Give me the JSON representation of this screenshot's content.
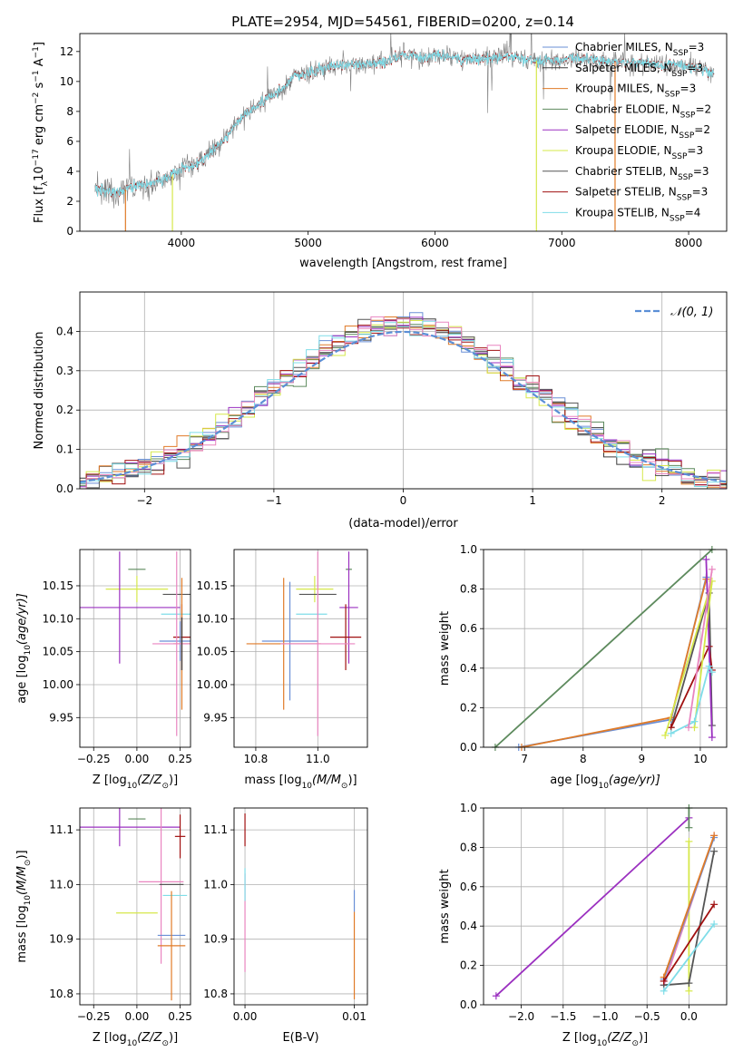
{
  "figure": {
    "title": "PLATE=2954, MJD=54561, FIBERID=0200, z=0.14"
  },
  "legend_items": [
    {
      "label": "Chabrier MILES, N",
      "sub": "SSP",
      "suffix": "=3",
      "color": "#6a8fd6"
    },
    {
      "label": "Salpeter MILES, N",
      "sub": "SSP",
      "suffix": "=3",
      "color": "#3a3a3a"
    },
    {
      "label": "Kroupa MILES, N",
      "sub": "SSP",
      "suffix": "=3",
      "color": "#e07b28"
    },
    {
      "label": "Chabrier ELODIE, N",
      "sub": "SSP",
      "suffix": "=2",
      "color": "#5d8a5d"
    },
    {
      "label": "Salpeter ELODIE, N",
      "sub": "SSP",
      "suffix": "=2",
      "color": "#9b30c0"
    },
    {
      "label": "Kroupa ELODIE, N",
      "sub": "SSP",
      "suffix": "=3",
      "color": "#d6e84a"
    },
    {
      "label": "Chabrier STELIB, N",
      "sub": "SSP",
      "suffix": "=3",
      "color": "#555555"
    },
    {
      "label": "Salpeter STELIB, N",
      "sub": "SSP",
      "suffix": "=3",
      "color": "#a01010"
    },
    {
      "label": "Kroupa STELIB, N",
      "sub": "SSP",
      "suffix": "=4",
      "color": "#7fdde8"
    }
  ],
  "chart_data": [
    {
      "id": "spectrum",
      "type": "line",
      "xlabel": "wavelength [Angstrom, rest frame]",
      "ylabel_parts": [
        "Flux [f",
        "λ",
        "10",
        "−17",
        " erg cm",
        "−2",
        " s",
        "−1",
        " A",
        "−1",
        "]"
      ],
      "xlim": [
        3200,
        8300
      ],
      "ylim": [
        0,
        13.2
      ],
      "xticks": [
        4000,
        5000,
        6000,
        7000,
        8000
      ],
      "yticks": [
        0,
        2,
        4,
        6,
        8,
        10,
        12
      ],
      "grid": false,
      "legend": "upper-right",
      "data_envelope": [
        [
          3320,
          2.8
        ],
        [
          3400,
          2.7
        ],
        [
          3500,
          2.5
        ],
        [
          3600,
          3.0
        ],
        [
          3700,
          3.0
        ],
        [
          3800,
          3.3
        ],
        [
          3900,
          3.6
        ],
        [
          4000,
          4.2
        ],
        [
          4100,
          4.4
        ],
        [
          4200,
          5.0
        ],
        [
          4300,
          5.8
        ],
        [
          4400,
          6.8
        ],
        [
          4500,
          7.8
        ],
        [
          4600,
          8.4
        ],
        [
          4700,
          9.0
        ],
        [
          4800,
          9.5
        ],
        [
          4900,
          10.4
        ],
        [
          5000,
          10.6
        ],
        [
          5100,
          10.8
        ],
        [
          5200,
          11.0
        ],
        [
          5300,
          11.1
        ],
        [
          5400,
          11.1
        ],
        [
          5500,
          11.2
        ],
        [
          5600,
          11.4
        ],
        [
          5700,
          11.7
        ],
        [
          5800,
          11.7
        ],
        [
          5900,
          11.6
        ],
        [
          6000,
          11.8
        ],
        [
          6100,
          11.7
        ],
        [
          6200,
          11.5
        ],
        [
          6300,
          11.5
        ],
        [
          6400,
          11.5
        ],
        [
          6500,
          11.6
        ],
        [
          6600,
          11.7
        ],
        [
          6700,
          11.5
        ],
        [
          6800,
          11.4
        ],
        [
          6900,
          11.4
        ],
        [
          7000,
          11.4
        ],
        [
          7100,
          11.6
        ],
        [
          7200,
          11.5
        ],
        [
          7300,
          11.4
        ],
        [
          7400,
          11.3
        ],
        [
          7500,
          11.3
        ],
        [
          7600,
          11.3
        ],
        [
          7700,
          11.2
        ],
        [
          7800,
          11.0
        ],
        [
          7900,
          11.2
        ],
        [
          8000,
          11.0
        ],
        [
          8100,
          10.9
        ],
        [
          8200,
          10.5
        ]
      ],
      "data_color": "#808080",
      "model_color": "#7fdde8"
    },
    {
      "id": "residual-histogram",
      "type": "histogram",
      "xlabel": "(data-model)/error",
      "ylabel": "Normed distribution",
      "xlim": [
        -2.5,
        2.5
      ],
      "ylim": [
        0,
        0.5
      ],
      "xticks": [
        -2,
        -1,
        0,
        1,
        2
      ],
      "yticks": [
        0.0,
        0.1,
        0.2,
        0.3,
        0.4
      ],
      "grid": true,
      "legend": "upper-right",
      "reference": {
        "label": "𝒩(0, 1)",
        "mean": 0,
        "sigma": 1,
        "color": "#5b8fd6"
      },
      "bin_width": 0.1
    },
    {
      "id": "age-vs-Z",
      "type": "errorbar",
      "xlabel_parts": [
        "Z [log",
        "10",
        "(Z/Z",
        "⊙",
        ")]"
      ],
      "ylabel_parts": [
        "age  [log",
        "10",
        "(age/yr)]"
      ],
      "xlim": [
        -0.33,
        0.31
      ],
      "ylim": [
        9.905,
        10.205
      ],
      "xticks": [
        -0.25,
        0.0,
        0.25
      ],
      "xticklabels": [
        "−0.25",
        "0.00",
        "0.25"
      ],
      "yticks": [
        9.95,
        10.0,
        10.05,
        10.1,
        10.15
      ],
      "yticklabels": [
        "9.95",
        "10.00",
        "10.05",
        "10.10",
        "10.15"
      ],
      "points": [
        {
          "x": 0.0,
          "y": 10.175,
          "xerr": 0.05,
          "yerr": 0.0,
          "color": "#5d8a5d"
        },
        {
          "x": 0.0,
          "y": 10.145,
          "xerr": 0.18,
          "yerr": 0.02,
          "color": "#d6e84a"
        },
        {
          "x": -0.1,
          "y": 10.117,
          "xerr": 0.35,
          "yerr": 0.085,
          "color": "#9b30c0"
        },
        {
          "x": 0.23,
          "y": 10.137,
          "xerr": 0.08,
          "yerr": 0.0,
          "color": "#555555"
        },
        {
          "x": 0.23,
          "y": 10.107,
          "xerr": 0.09,
          "yerr": 0.0,
          "color": "#7fdde8"
        },
        {
          "x": 0.26,
          "y": 10.072,
          "xerr": 0.05,
          "yerr": 0.05,
          "color": "#a01010"
        },
        {
          "x": 0.25,
          "y": 10.066,
          "xerr": 0.12,
          "yerr": 0.03,
          "color": "#6a8fd6"
        },
        {
          "x": 0.26,
          "y": 10.062,
          "xerr": 0.05,
          "yerr": 0.1,
          "color": "#e07b28"
        },
        {
          "x": 0.23,
          "y": 10.062,
          "xerr": 0.14,
          "yerr": 0.14,
          "color": "#e985c0"
        },
        {
          "x": 0.26,
          "y": 10.062,
          "xerr": 0.0,
          "yerr": 0.04,
          "color": "#3a3a3a"
        }
      ]
    },
    {
      "id": "age-vs-mass",
      "type": "errorbar",
      "xlabel_parts": [
        "mass [log",
        "10",
        "(M/M",
        "⊙",
        ")]"
      ],
      "ylabel_parts": [],
      "xlim": [
        10.73,
        11.16
      ],
      "ylim": [
        9.905,
        10.205
      ],
      "xticks": [
        10.8,
        11.0
      ],
      "xticklabels": [
        "10.8",
        "11.0"
      ],
      "yticks": [
        9.95,
        10.0,
        10.05,
        10.1,
        10.15
      ],
      "yticklabels": [
        "9.95",
        "10.00",
        "10.05",
        "10.10",
        "10.15"
      ],
      "points": [
        {
          "x": 11.1,
          "y": 10.175,
          "xerr": 0.01,
          "yerr": 0.0,
          "color": "#5d8a5d"
        },
        {
          "x": 10.99,
          "y": 10.145,
          "xerr": 0.06,
          "yerr": 0.02,
          "color": "#d6e84a"
        },
        {
          "x": 11.1,
          "y": 10.117,
          "xerr": 0.03,
          "yerr": 0.085,
          "color": "#9b30c0"
        },
        {
          "x": 11.0,
          "y": 10.137,
          "xerr": 0.06,
          "yerr": 0.0,
          "color": "#555555"
        },
        {
          "x": 10.98,
          "y": 10.107,
          "xerr": 0.05,
          "yerr": 0.0,
          "color": "#7fdde8"
        },
        {
          "x": 11.09,
          "y": 10.072,
          "xerr": 0.05,
          "yerr": 0.05,
          "color": "#a01010"
        },
        {
          "x": 10.91,
          "y": 10.066,
          "xerr": 0.09,
          "yerr": 0.09,
          "color": "#6a8fd6"
        },
        {
          "x": 10.89,
          "y": 10.062,
          "xerr": 0.12,
          "yerr": 0.1,
          "color": "#e07b28"
        },
        {
          "x": 11.0,
          "y": 10.062,
          "xerr": 0.12,
          "yerr": 0.14,
          "color": "#e985c0"
        }
      ]
    },
    {
      "id": "weight-vs-age",
      "type": "line",
      "xlabel_parts": [
        "age  [log",
        "10",
        "(age/yr)]"
      ],
      "ylabel": "mass weight",
      "xlim": [
        6.3,
        10.45
      ],
      "ylim": [
        0,
        1.0
      ],
      "xticks": [
        7,
        8,
        9,
        10
      ],
      "yticks": [
        0.0,
        0.2,
        0.4,
        0.6,
        0.8,
        1.0
      ],
      "grid": true,
      "series": [
        {
          "color": "#5d8a5d",
          "points": [
            [
              6.5,
              0.0
            ],
            [
              10.2,
              1.0
            ]
          ]
        },
        {
          "color": "#6a8fd6",
          "points": [
            [
              6.9,
              0.0
            ],
            [
              9.5,
              0.14
            ],
            [
              10.1,
              0.86
            ]
          ]
        },
        {
          "color": "#e07b28",
          "points": [
            [
              6.95,
              0.0
            ],
            [
              9.5,
              0.15
            ],
            [
              10.1,
              0.85
            ]
          ]
        },
        {
          "color": "#555555",
          "points": [
            [
              9.5,
              0.1
            ],
            [
              10.15,
              0.78
            ],
            [
              10.2,
              0.11
            ]
          ]
        },
        {
          "color": "#a01010",
          "points": [
            [
              9.5,
              0.1
            ],
            [
              10.15,
              0.51
            ],
            [
              10.2,
              0.39
            ]
          ]
        },
        {
          "color": "#9b30c0",
          "points": [
            [
              10.1,
              0.95
            ],
            [
              10.2,
              0.05
            ]
          ]
        },
        {
          "color": "#d6e84a",
          "points": [
            [
              9.4,
              0.06
            ],
            [
              10.2,
              0.84
            ],
            [
              9.9,
              0.1
            ]
          ]
        },
        {
          "color": "#7fdde8",
          "points": [
            [
              9.5,
              0.07
            ],
            [
              9.9,
              0.13
            ],
            [
              10.15,
              0.41
            ],
            [
              10.2,
              0.38
            ]
          ]
        },
        {
          "color": "#e985c0",
          "points": [
            [
              9.8,
              0.1
            ],
            [
              10.2,
              0.9
            ]
          ]
        }
      ]
    },
    {
      "id": "mass-vs-Z",
      "type": "errorbar",
      "xlabel_parts": [
        "Z [log",
        "10",
        "(Z/Z",
        "⊙",
        ")]"
      ],
      "ylabel_parts": [
        "mass [log",
        "10",
        "(M/M",
        "⊙",
        ")]"
      ],
      "xlim": [
        -0.33,
        0.31
      ],
      "ylim": [
        10.78,
        11.14
      ],
      "xticks": [
        -0.25,
        0.0,
        0.25
      ],
      "xticklabels": [
        "−0.25",
        "0.00",
        "0.25"
      ],
      "yticks": [
        10.8,
        10.9,
        11.0,
        11.1
      ],
      "yticklabels": [
        "10.8",
        "10.9",
        "11.0",
        "11.1"
      ],
      "points": [
        {
          "x": 0.0,
          "y": 11.12,
          "xerr": 0.05,
          "yerr": 0.0,
          "color": "#5d8a5d"
        },
        {
          "x": -0.1,
          "y": 11.105,
          "xerr": 0.35,
          "yerr": 0.035,
          "color": "#9b30c0"
        },
        {
          "x": 0.25,
          "y": 11.088,
          "xerr": 0.03,
          "yerr": 0.04,
          "color": "#a01010"
        },
        {
          "x": 0.14,
          "y": 11.005,
          "xerr": 0.13,
          "yerr": 0.15,
          "color": "#e985c0"
        },
        {
          "x": 0.2,
          "y": 11.0,
          "xerr": 0.07,
          "yerr": 0.0,
          "color": "#555555"
        },
        {
          "x": 0.22,
          "y": 10.98,
          "xerr": 0.07,
          "yerr": 0.0,
          "color": "#7fdde8"
        },
        {
          "x": 0.0,
          "y": 10.948,
          "xerr": 0.12,
          "yerr": 0.0,
          "color": "#d6e84a"
        },
        {
          "x": 0.2,
          "y": 10.907,
          "xerr": 0.08,
          "yerr": 0.0,
          "color": "#6a8fd6"
        },
        {
          "x": 0.2,
          "y": 10.888,
          "xerr": 0.08,
          "yerr": 0.1,
          "color": "#e07b28"
        }
      ]
    },
    {
      "id": "mass-vs-EBV",
      "type": "errorbar",
      "xlabel": "E(B-V)",
      "ylabel_parts": [],
      "xlim": [
        -0.001,
        0.0112
      ],
      "ylim": [
        10.78,
        11.14
      ],
      "xticks": [
        0.0,
        0.01
      ],
      "xticklabels": [
        "0.00",
        "0.01"
      ],
      "yticks": [
        10.8,
        10.9,
        11.0,
        11.1
      ],
      "yticklabels": [
        "10.8",
        "10.9",
        "11.0",
        "11.1"
      ],
      "points": [
        {
          "x": 0.0,
          "y": 11.1,
          "xerr": 0.0,
          "yerr": 0.03,
          "color": "#a01010"
        },
        {
          "x": 0.0,
          "y": 10.93,
          "xerr": 0.0,
          "yerr": 0.09,
          "color": "#e985c0"
        },
        {
          "x": 0.0,
          "y": 11.0,
          "xerr": 0.0,
          "yerr": 0.03,
          "color": "#7fdde8"
        },
        {
          "x": 0.01,
          "y": 10.97,
          "xerr": 0.0,
          "yerr": 0.02,
          "color": "#6a8fd6"
        },
        {
          "x": 0.01,
          "y": 10.87,
          "xerr": 0.0,
          "yerr": 0.08,
          "color": "#e07b28"
        }
      ]
    },
    {
      "id": "weight-vs-Z",
      "type": "line",
      "xlabel_parts": [
        "Z [log",
        "10",
        "(Z/Z",
        "⊙",
        ")]"
      ],
      "ylabel": "mass weight",
      "xlim": [
        -2.45,
        0.45
      ],
      "ylim": [
        0,
        1.0
      ],
      "xticks": [
        -2.0,
        -1.5,
        -1.0,
        -0.5,
        0.0
      ],
      "xticklabels": [
        "−2.0",
        "−1.5",
        "−1.0",
        "−0.5",
        "0.0"
      ],
      "yticks": [
        0.0,
        0.2,
        0.4,
        0.6,
        0.8,
        1.0
      ],
      "grid": true,
      "series": [
        {
          "color": "#9b30c0",
          "points": [
            [
              -2.3,
              0.045
            ],
            [
              0.0,
              0.95
            ]
          ]
        },
        {
          "color": "#5d8a5d",
          "points": [
            [
              0.0,
              1.0
            ],
            [
              0.0,
              0.9
            ]
          ]
        },
        {
          "color": "#d6e84a",
          "points": [
            [
              0.0,
              0.83
            ],
            [
              0.0,
              0.07
            ]
          ]
        },
        {
          "color": "#e985c0",
          "points": [
            [
              -0.3,
              0.1
            ],
            [
              0.3,
              0.86
            ]
          ]
        },
        {
          "color": "#6a8fd6",
          "points": [
            [
              -0.3,
              0.13
            ],
            [
              0.3,
              0.85
            ]
          ]
        },
        {
          "color": "#e07b28",
          "points": [
            [
              -0.3,
              0.14
            ],
            [
              0.3,
              0.86
            ]
          ]
        },
        {
          "color": "#555555",
          "points": [
            [
              -0.3,
              0.1
            ],
            [
              0.0,
              0.11
            ],
            [
              0.3,
              0.78
            ]
          ]
        },
        {
          "color": "#a01010",
          "points": [
            [
              -0.3,
              0.12
            ],
            [
              0.3,
              0.51
            ]
          ]
        },
        {
          "color": "#7fdde8",
          "points": [
            [
              -0.3,
              0.07
            ],
            [
              0.3,
              0.41
            ]
          ]
        }
      ]
    }
  ]
}
